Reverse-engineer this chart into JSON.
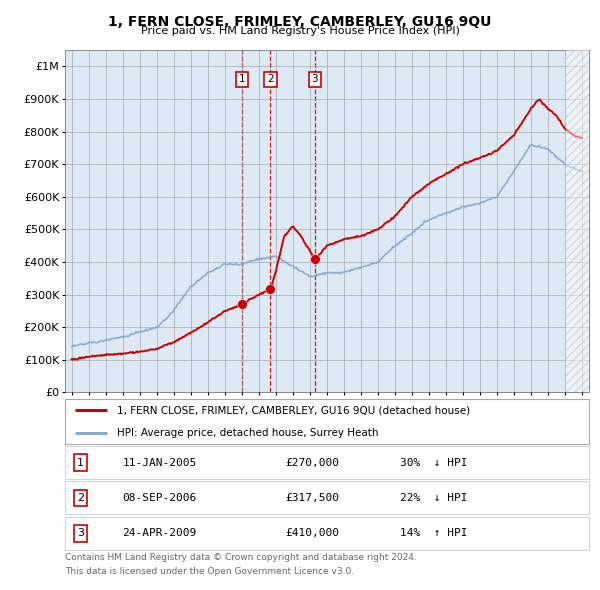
{
  "title": "1, FERN CLOSE, FRIMLEY, CAMBERLEY, GU16 9QU",
  "subtitle": "Price paid vs. HM Land Registry's House Price Index (HPI)",
  "transactions": [
    {
      "num": 1,
      "date_str": "11-JAN-2005",
      "year": 2005.03,
      "price": 270000,
      "pct": "30%",
      "dir": "↓"
    },
    {
      "num": 2,
      "date_str": "08-SEP-2006",
      "year": 2006.69,
      "price": 317500,
      "pct": "22%",
      "dir": "↓"
    },
    {
      "num": 3,
      "date_str": "24-APR-2009",
      "year": 2009.3,
      "price": 410000,
      "pct": "14%",
      "dir": "↑"
    }
  ],
  "legend_property": "1, FERN CLOSE, FRIMLEY, CAMBERLEY, GU16 9QU (detached house)",
  "legend_hpi": "HPI: Average price, detached house, Surrey Heath",
  "footnote1": "Contains HM Land Registry data © Crown copyright and database right 2024.",
  "footnote2": "This data is licensed under the Open Government Licence v3.0.",
  "yticks": [
    0,
    100000,
    200000,
    300000,
    400000,
    500000,
    600000,
    700000,
    800000,
    900000,
    1000000
  ],
  "xlim_start": 1994.6,
  "xlim_end": 2025.4,
  "plot_bg": "#ddeaf6",
  "fig_bg": "#ffffff",
  "red_color": "#cc0000",
  "blue_color": "#88aacc",
  "hatch_start": 2024.08
}
